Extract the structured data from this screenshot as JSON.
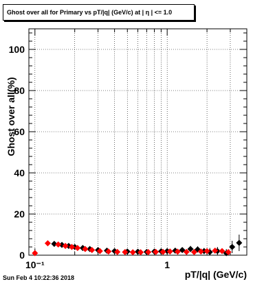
{
  "chart_data": {
    "type": "scatter",
    "title": "Ghost over all for Primary vs pT/|q| (GeV/c) at |  η | <= 1.0",
    "xlabel": "pT/|q| (GeV/c)",
    "ylabel": "Ghost over all(%)",
    "xscale": "log",
    "xlim": [
      0.09,
      4.0
    ],
    "ylim": [
      0,
      110
    ],
    "x_tick_labels": [
      {
        "value": 0.1,
        "label": "10⁻¹"
      },
      {
        "value": 1,
        "label": "1"
      }
    ],
    "y_tick_labels": [
      {
        "value": 0,
        "label": "0"
      },
      {
        "value": 20,
        "label": "20"
      },
      {
        "value": 40,
        "label": "40"
      },
      {
        "value": 60,
        "label": "60"
      },
      {
        "value": 80,
        "label": "80"
      },
      {
        "value": 100,
        "label": "100"
      }
    ],
    "grid": true,
    "series": [
      {
        "color": "#000000",
        "marker": "diamond",
        "points": [
          {
            "x": 0.14,
            "y": 5.5,
            "yerr": 1.0
          },
          {
            "x": 0.16,
            "y": 5.0,
            "yerr": 1.0
          },
          {
            "x": 0.18,
            "y": 4.5,
            "yerr": 1.0
          },
          {
            "x": 0.2,
            "y": 4.0,
            "yerr": 1.0
          },
          {
            "x": 0.23,
            "y": 3.5,
            "yerr": 1.0
          },
          {
            "x": 0.26,
            "y": 3.0,
            "yerr": 1.0
          },
          {
            "x": 0.3,
            "y": 2.5,
            "yerr": 1.0
          },
          {
            "x": 0.35,
            "y": 2.2,
            "yerr": 1.0
          },
          {
            "x": 0.4,
            "y": 2.0,
            "yerr": 1.0
          },
          {
            "x": 0.5,
            "y": 1.8,
            "yerr": 1.0
          },
          {
            "x": 0.6,
            "y": 1.7,
            "yerr": 1.0
          },
          {
            "x": 0.7,
            "y": 1.6,
            "yerr": 1.0
          },
          {
            "x": 0.8,
            "y": 1.8,
            "yerr": 1.0
          },
          {
            "x": 0.9,
            "y": 1.9,
            "yerr": 1.0
          },
          {
            "x": 1.0,
            "y": 2.0,
            "yerr": 1.0
          },
          {
            "x": 1.15,
            "y": 2.2,
            "yerr": 1.0
          },
          {
            "x": 1.3,
            "y": 2.5,
            "yerr": 1.0
          },
          {
            "x": 1.5,
            "y": 3.0,
            "yerr": 1.5
          },
          {
            "x": 1.7,
            "y": 2.8,
            "yerr": 1.5
          },
          {
            "x": 1.9,
            "y": 2.0,
            "yerr": 1.5
          },
          {
            "x": 2.1,
            "y": 1.5,
            "yerr": 2.0
          },
          {
            "x": 2.4,
            "y": 2.0,
            "yerr": 2.0
          },
          {
            "x": 2.8,
            "y": 1.0,
            "yerr": 2.0
          },
          {
            "x": 3.1,
            "y": 4.0,
            "yerr": 3.0
          },
          {
            "x": 3.5,
            "y": 6.0,
            "yerr": 4.0
          }
        ]
      },
      {
        "color": "#ff0000",
        "marker": "diamond",
        "points": [
          {
            "x": 0.1,
            "y": 1.0,
            "yerr": 0.5
          },
          {
            "x": 0.125,
            "y": 5.8,
            "yerr": 1.0
          },
          {
            "x": 0.15,
            "y": 5.2,
            "yerr": 1.0
          },
          {
            "x": 0.17,
            "y": 4.5,
            "yerr": 1.0
          },
          {
            "x": 0.19,
            "y": 4.0,
            "yerr": 1.0
          },
          {
            "x": 0.21,
            "y": 3.5,
            "yerr": 1.0
          },
          {
            "x": 0.24,
            "y": 3.0,
            "yerr": 1.0
          },
          {
            "x": 0.27,
            "y": 2.5,
            "yerr": 1.0
          },
          {
            "x": 0.31,
            "y": 2.0,
            "yerr": 1.0
          },
          {
            "x": 0.36,
            "y": 1.8,
            "yerr": 1.0
          },
          {
            "x": 0.42,
            "y": 1.6,
            "yerr": 1.0
          },
          {
            "x": 0.48,
            "y": 1.5,
            "yerr": 1.0
          },
          {
            "x": 0.55,
            "y": 1.4,
            "yerr": 1.0
          },
          {
            "x": 0.63,
            "y": 1.4,
            "yerr": 1.0
          },
          {
            "x": 0.72,
            "y": 1.5,
            "yerr": 1.0
          },
          {
            "x": 0.82,
            "y": 1.6,
            "yerr": 1.0
          },
          {
            "x": 0.93,
            "y": 1.6,
            "yerr": 1.0
          },
          {
            "x": 1.05,
            "y": 1.8,
            "yerr": 1.0
          },
          {
            "x": 1.2,
            "y": 1.7,
            "yerr": 1.0
          },
          {
            "x": 1.4,
            "y": 1.6,
            "yerr": 1.0
          },
          {
            "x": 1.6,
            "y": 1.5,
            "yerr": 1.0
          },
          {
            "x": 1.8,
            "y": 1.8,
            "yerr": 1.0
          },
          {
            "x": 2.0,
            "y": 2.0,
            "yerr": 1.0
          },
          {
            "x": 2.3,
            "y": 2.2,
            "yerr": 1.0
          },
          {
            "x": 2.6,
            "y": 2.0,
            "yerr": 1.0
          },
          {
            "x": 2.9,
            "y": 1.5,
            "yerr": 1.0
          }
        ]
      }
    ]
  },
  "footer": {
    "timestamp": "Sun Feb  4 10:22:36 2018"
  }
}
